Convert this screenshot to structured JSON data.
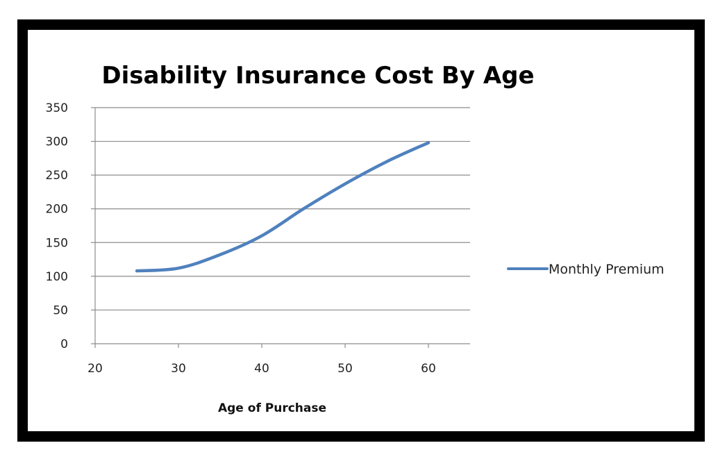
{
  "chart_data": {
    "type": "line",
    "title": "Disability Insurance Cost By Age",
    "xlabel": "Age of Purchase",
    "ylabel": "",
    "xlim": [
      20,
      65
    ],
    "ylim": [
      0,
      350
    ],
    "x_ticks": [
      20,
      30,
      40,
      50,
      60
    ],
    "y_ticks": [
      0,
      50,
      100,
      150,
      200,
      250,
      300,
      350
    ],
    "grid": "horizontal",
    "legend_position": "right",
    "series": [
      {
        "name": "Monthly Premium",
        "color": "#4f81bd",
        "x": [
          25,
          30,
          35,
          40,
          45,
          50,
          55,
          60
        ],
        "y": [
          108,
          112,
          132,
          160,
          200,
          237,
          270,
          298
        ]
      }
    ]
  }
}
